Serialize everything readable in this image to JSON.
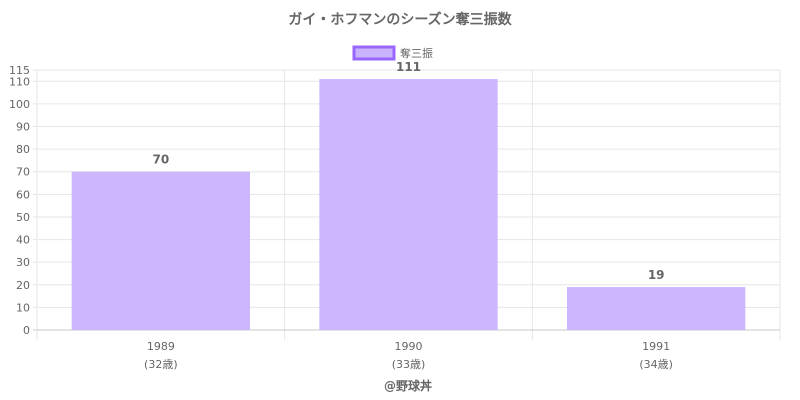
{
  "chart_data": {
    "type": "bar",
    "title": "ガイ・ホフマンのシーズン奪三振数",
    "legend_position": "top",
    "series": [
      {
        "name": "奪三振",
        "values": [
          70,
          111,
          19
        ],
        "color": "#c9b3ff",
        "border_color": "#9966ff"
      }
    ],
    "categories": [
      "1989",
      "1990",
      "1991"
    ],
    "category_sublabels": [
      "(32歳)",
      "(33歳)",
      "(34歳)"
    ],
    "y_ticks": [
      0,
      10,
      20,
      30,
      40,
      50,
      60,
      70,
      80,
      90,
      100,
      110,
      115
    ],
    "ylim": [
      0,
      115
    ],
    "grid": true,
    "xlabel": "",
    "ylabel": ""
  },
  "footer": {
    "credit": "@野球丼"
  }
}
